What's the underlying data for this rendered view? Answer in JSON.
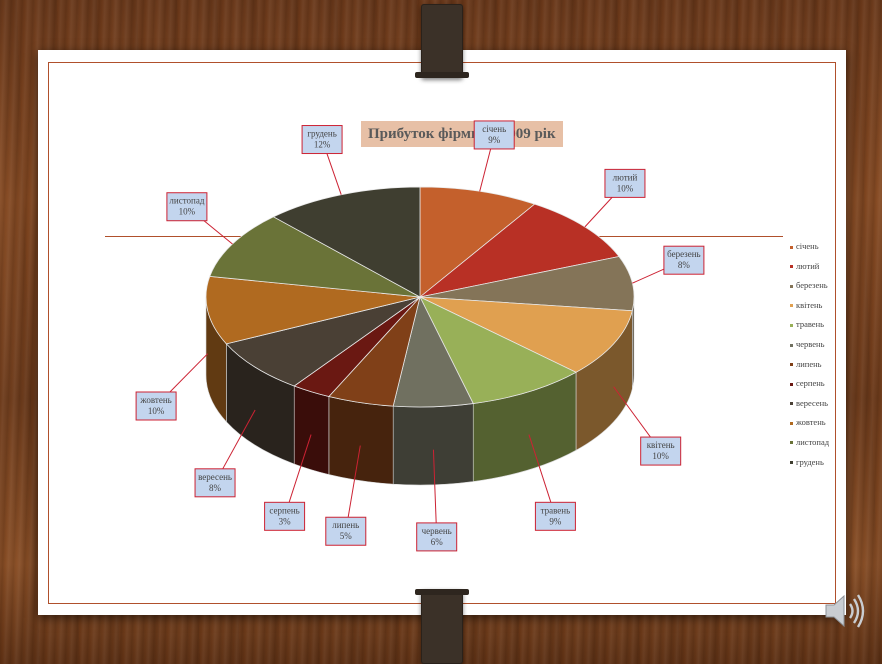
{
  "colors": {
    "border": "#b0502c",
    "title_bg": "#e7c0a6",
    "label_bg": "#c3d5ee",
    "label_border": "#cc2233"
  },
  "icons": {
    "audio": "speaker-icon"
  },
  "chart_data": {
    "type": "pie",
    "title": "Прибуток фірми за 2009 рік",
    "categories": [
      "січень",
      "лютий",
      "березень",
      "квітень",
      "травень",
      "червень",
      "липень",
      "серпень",
      "вересень",
      "жовтень",
      "листопад",
      "грудень"
    ],
    "values": [
      9,
      10,
      8,
      10,
      9,
      6,
      5,
      3,
      8,
      10,
      10,
      12
    ],
    "value_labels": [
      "9%",
      "10%",
      "8%",
      "10%",
      "9%",
      "6%",
      "5%",
      "3%",
      "8%",
      "10%",
      "10%",
      "12%"
    ],
    "colors": [
      "#c4602c",
      "#b83025",
      "#847458",
      "#e0a050",
      "#98b058",
      "#707060",
      "#804018",
      "#6a1812",
      "#4a4035",
      "#b06a20",
      "#6a7338",
      "#3f3e30"
    ],
    "legend_position": "right",
    "style": "3d-exploded"
  }
}
